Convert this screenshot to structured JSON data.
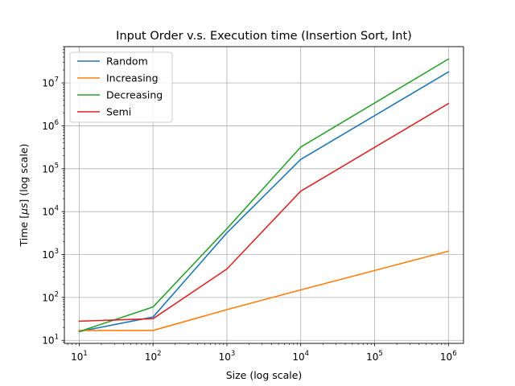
{
  "chart_data": {
    "type": "line",
    "title": "Input Order v.s. Execution time (Insertion Sort, Int)",
    "xlabel": "Size (log scale)",
    "ylabel_prefix": "Time [",
    "ylabel_mu": "μs",
    "ylabel_suffix": "] (log scale)",
    "x_scale": "log",
    "y_scale": "log",
    "xlim": [
      6.3,
      1600000
    ],
    "ylim": [
      8.5,
      70000000
    ],
    "grid": true,
    "legend_position": "upper-left",
    "x": [
      10,
      100,
      1000,
      10000,
      1000000
    ],
    "x_tick_base": "10",
    "x_ticks": [
      {
        "value": 10,
        "exp": "1"
      },
      {
        "value": 100,
        "exp": "2"
      },
      {
        "value": 1000,
        "exp": "3"
      },
      {
        "value": 10000,
        "exp": "4"
      },
      {
        "value": 100000,
        "exp": "5"
      },
      {
        "value": 1000000,
        "exp": "6"
      }
    ],
    "y_tick_base": "10",
    "y_ticks": [
      {
        "value": 10,
        "exp": "1"
      },
      {
        "value": 100,
        "exp": "2"
      },
      {
        "value": 1000,
        "exp": "3"
      },
      {
        "value": 10000,
        "exp": "4"
      },
      {
        "value": 100000,
        "exp": "5"
      },
      {
        "value": 1000000,
        "exp": "6"
      },
      {
        "value": 10000000,
        "exp": "7"
      }
    ],
    "series": [
      {
        "name": "Random",
        "color": "#1f77b4",
        "values": [
          16,
          35,
          3200,
          165000,
          18000000
        ]
      },
      {
        "name": "Increasing",
        "color": "#ff7f0e",
        "values": [
          17,
          17,
          52,
          150,
          1200
        ]
      },
      {
        "name": "Decreasing",
        "color": "#2ca02c",
        "values": [
          16,
          60,
          4000,
          320000,
          36000000
        ]
      },
      {
        "name": "Semi",
        "color": "#d62728",
        "values": [
          28,
          32,
          460,
          30000,
          3300000
        ]
      }
    ]
  }
}
